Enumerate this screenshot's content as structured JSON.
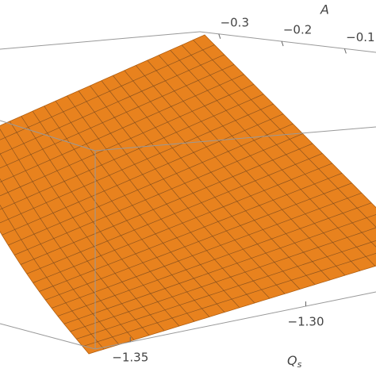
{
  "chart_data": {
    "type": "surface",
    "xlabel": "Q",
    "xlabel_subscript": "s",
    "ylabel": "A",
    "xticks": [
      {
        "value": -1.35,
        "label": "−1.35"
      },
      {
        "value": -1.3,
        "label": "−1.30"
      }
    ],
    "yticks": [
      {
        "value": -0.3,
        "label": "−0.3"
      },
      {
        "value": -0.2,
        "label": "−0.2"
      },
      {
        "value": -0.1,
        "label": "−0.1"
      }
    ],
    "color": "#e8821e"
  }
}
